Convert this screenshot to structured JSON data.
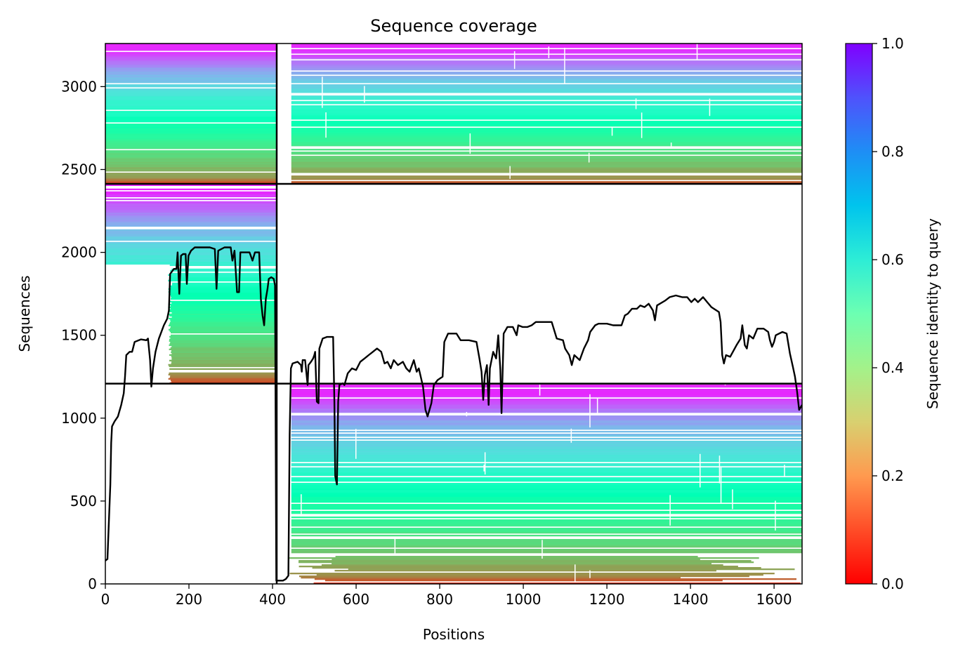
{
  "chart_data": {
    "type": "heatmap",
    "title": "Sequence coverage",
    "xlabel": "Positions",
    "ylabel": "Sequences",
    "xlim": [
      0,
      1667
    ],
    "ylim": [
      0,
      3260
    ],
    "x_ticks": [
      0,
      200,
      400,
      600,
      800,
      1000,
      1200,
      1400,
      1600
    ],
    "y_ticks": [
      0,
      500,
      1000,
      1500,
      2000,
      2500,
      3000
    ],
    "colorbar": {
      "label": "Sequence identity to query",
      "colormap": "rainbow_r",
      "range": [
        0.0,
        1.0
      ],
      "ticks": [
        0.0,
        0.2,
        0.4,
        0.6,
        0.8,
        1.0
      ],
      "tick_labels": [
        "0.0",
        "0.2",
        "0.4",
        "0.6",
        "0.8",
        "1.0"
      ]
    },
    "chain_boundaries": {
      "x": [
        410
      ],
      "y": [
        1208,
        2413
      ]
    },
    "blocks": [
      {
        "x": [
          0,
          410
        ],
        "y": [
          2413,
          3260
        ],
        "coverage_start": 0,
        "filled": true
      },
      {
        "x": [
          410,
          1667
        ],
        "y": [
          2413,
          3260
        ],
        "coverage_start": 445,
        "filled": true
      },
      {
        "x": [
          0,
          410
        ],
        "y": [
          1208,
          2413
        ],
        "coverage_start": 0,
        "filled": true,
        "bottom_only_from": 150
      },
      {
        "x": [
          410,
          1667
        ],
        "y": [
          1208,
          2413
        ],
        "filled": false
      },
      {
        "x": [
          0,
          410
        ],
        "y": [
          0,
          1208
        ],
        "filled": false
      },
      {
        "x": [
          410,
          1667
        ],
        "y": [
          0,
          1208
        ],
        "coverage_start": 445,
        "filled": true
      }
    ],
    "series": [
      {
        "color": "#000000",
        "points": [
          [
            0,
            140
          ],
          [
            5,
            150
          ],
          [
            8,
            350
          ],
          [
            12,
            600
          ],
          [
            14,
            850
          ],
          [
            16,
            950
          ],
          [
            22,
            980
          ],
          [
            30,
            1010
          ],
          [
            38,
            1080
          ],
          [
            44,
            1150
          ],
          [
            47,
            1250
          ],
          [
            50,
            1380
          ],
          [
            58,
            1400
          ],
          [
            64,
            1400
          ],
          [
            70,
            1460
          ],
          [
            85,
            1475
          ],
          [
            98,
            1470
          ],
          [
            102,
            1480
          ],
          [
            107,
            1350
          ],
          [
            110,
            1190
          ],
          [
            114,
            1300
          ],
          [
            120,
            1400
          ],
          [
            128,
            1480
          ],
          [
            140,
            1560
          ],
          [
            148,
            1600
          ],
          [
            152,
            1650
          ],
          [
            155,
            1870
          ],
          [
            164,
            1900
          ],
          [
            170,
            1900
          ],
          [
            173,
            2000
          ],
          [
            177,
            1750
          ],
          [
            181,
            1980
          ],
          [
            186,
            1990
          ],
          [
            192,
            1990
          ],
          [
            195,
            1810
          ],
          [
            199,
            1980
          ],
          [
            205,
            2010
          ],
          [
            214,
            2030
          ],
          [
            230,
            2030
          ],
          [
            250,
            2030
          ],
          [
            262,
            2020
          ],
          [
            266,
            1780
          ],
          [
            270,
            2010
          ],
          [
            285,
            2030
          ],
          [
            300,
            2030
          ],
          [
            304,
            1950
          ],
          [
            309,
            2010
          ],
          [
            315,
            1760
          ],
          [
            320,
            1760
          ],
          [
            323,
            2000
          ],
          [
            330,
            2000
          ],
          [
            345,
            2000
          ],
          [
            352,
            1950
          ],
          [
            358,
            2000
          ],
          [
            368,
            2000
          ],
          [
            372,
            1720
          ],
          [
            376,
            1620
          ],
          [
            380,
            1560
          ],
          [
            384,
            1720
          ],
          [
            388,
            1780
          ],
          [
            391,
            1840
          ],
          [
            397,
            1850
          ],
          [
            403,
            1840
          ],
          [
            406,
            1800
          ],
          [
            409,
            20
          ],
          [
            425,
            20
          ],
          [
            432,
            30
          ],
          [
            438,
            50
          ],
          [
            441,
            900
          ],
          [
            444,
            1300
          ],
          [
            448,
            1330
          ],
          [
            460,
            1340
          ],
          [
            468,
            1320
          ],
          [
            470,
            1280
          ],
          [
            472,
            1350
          ],
          [
            478,
            1350
          ],
          [
            480,
            1300
          ],
          [
            484,
            1200
          ],
          [
            486,
            1320
          ],
          [
            492,
            1340
          ],
          [
            497,
            1360
          ],
          [
            500,
            1380
          ],
          [
            502,
            1400
          ],
          [
            506,
            1100
          ],
          [
            510,
            1090
          ],
          [
            512,
            1420
          ],
          [
            520,
            1480
          ],
          [
            530,
            1490
          ],
          [
            545,
            1490
          ],
          [
            548,
            1100
          ],
          [
            550,
            650
          ],
          [
            554,
            600
          ],
          [
            557,
            1100
          ],
          [
            560,
            1200
          ],
          [
            568,
            1210
          ],
          [
            572,
            1200
          ],
          [
            580,
            1270
          ],
          [
            590,
            1300
          ],
          [
            600,
            1290
          ],
          [
            610,
            1340
          ],
          [
            620,
            1360
          ],
          [
            630,
            1380
          ],
          [
            640,
            1400
          ],
          [
            650,
            1420
          ],
          [
            660,
            1400
          ],
          [
            668,
            1330
          ],
          [
            675,
            1340
          ],
          [
            683,
            1300
          ],
          [
            690,
            1350
          ],
          [
            700,
            1320
          ],
          [
            712,
            1340
          ],
          [
            720,
            1300
          ],
          [
            728,
            1280
          ],
          [
            738,
            1350
          ],
          [
            745,
            1280
          ],
          [
            750,
            1300
          ],
          [
            760,
            1190
          ],
          [
            766,
            1050
          ],
          [
            771,
            1010
          ],
          [
            780,
            1090
          ],
          [
            786,
            1200
          ],
          [
            795,
            1230
          ],
          [
            807,
            1250
          ],
          [
            811,
            1460
          ],
          [
            820,
            1510
          ],
          [
            840,
            1510
          ],
          [
            850,
            1470
          ],
          [
            870,
            1470
          ],
          [
            888,
            1460
          ],
          [
            895,
            1360
          ],
          [
            900,
            1280
          ],
          [
            904,
            1110
          ],
          [
            908,
            1260
          ],
          [
            913,
            1320
          ],
          [
            917,
            1080
          ],
          [
            920,
            1300
          ],
          [
            928,
            1400
          ],
          [
            935,
            1360
          ],
          [
            940,
            1500
          ],
          [
            945,
            1290
          ],
          [
            948,
            1030
          ],
          [
            953,
            1510
          ],
          [
            962,
            1550
          ],
          [
            975,
            1550
          ],
          [
            984,
            1500
          ],
          [
            988,
            1560
          ],
          [
            998,
            1550
          ],
          [
            1010,
            1550
          ],
          [
            1020,
            1560
          ],
          [
            1030,
            1580
          ],
          [
            1050,
            1580
          ],
          [
            1068,
            1580
          ],
          [
            1080,
            1480
          ],
          [
            1095,
            1470
          ],
          [
            1100,
            1420
          ],
          [
            1110,
            1380
          ],
          [
            1116,
            1320
          ],
          [
            1122,
            1380
          ],
          [
            1135,
            1350
          ],
          [
            1145,
            1420
          ],
          [
            1155,
            1470
          ],
          [
            1160,
            1520
          ],
          [
            1172,
            1560
          ],
          [
            1180,
            1570
          ],
          [
            1200,
            1570
          ],
          [
            1215,
            1560
          ],
          [
            1235,
            1560
          ],
          [
            1243,
            1620
          ],
          [
            1250,
            1630
          ],
          [
            1260,
            1660
          ],
          [
            1272,
            1660
          ],
          [
            1280,
            1680
          ],
          [
            1290,
            1670
          ],
          [
            1300,
            1690
          ],
          [
            1310,
            1650
          ],
          [
            1315,
            1590
          ],
          [
            1320,
            1680
          ],
          [
            1340,
            1710
          ],
          [
            1350,
            1730
          ],
          [
            1365,
            1740
          ],
          [
            1380,
            1730
          ],
          [
            1392,
            1730
          ],
          [
            1402,
            1700
          ],
          [
            1410,
            1720
          ],
          [
            1418,
            1700
          ],
          [
            1430,
            1730
          ],
          [
            1440,
            1700
          ],
          [
            1450,
            1670
          ],
          [
            1462,
            1650
          ],
          [
            1468,
            1640
          ],
          [
            1472,
            1580
          ],
          [
            1476,
            1380
          ],
          [
            1480,
            1330
          ],
          [
            1485,
            1380
          ],
          [
            1495,
            1370
          ],
          [
            1510,
            1440
          ],
          [
            1520,
            1480
          ],
          [
            1524,
            1560
          ],
          [
            1530,
            1440
          ],
          [
            1535,
            1420
          ],
          [
            1540,
            1500
          ],
          [
            1550,
            1480
          ],
          [
            1560,
            1540
          ],
          [
            1575,
            1540
          ],
          [
            1586,
            1520
          ],
          [
            1590,
            1470
          ],
          [
            1595,
            1430
          ],
          [
            1600,
            1460
          ],
          [
            1604,
            1500
          ],
          [
            1620,
            1520
          ],
          [
            1630,
            1510
          ],
          [
            1638,
            1390
          ],
          [
            1645,
            1310
          ],
          [
            1650,
            1250
          ],
          [
            1655,
            1160
          ],
          [
            1660,
            1050
          ],
          [
            1667,
            1080
          ]
        ]
      }
    ]
  }
}
